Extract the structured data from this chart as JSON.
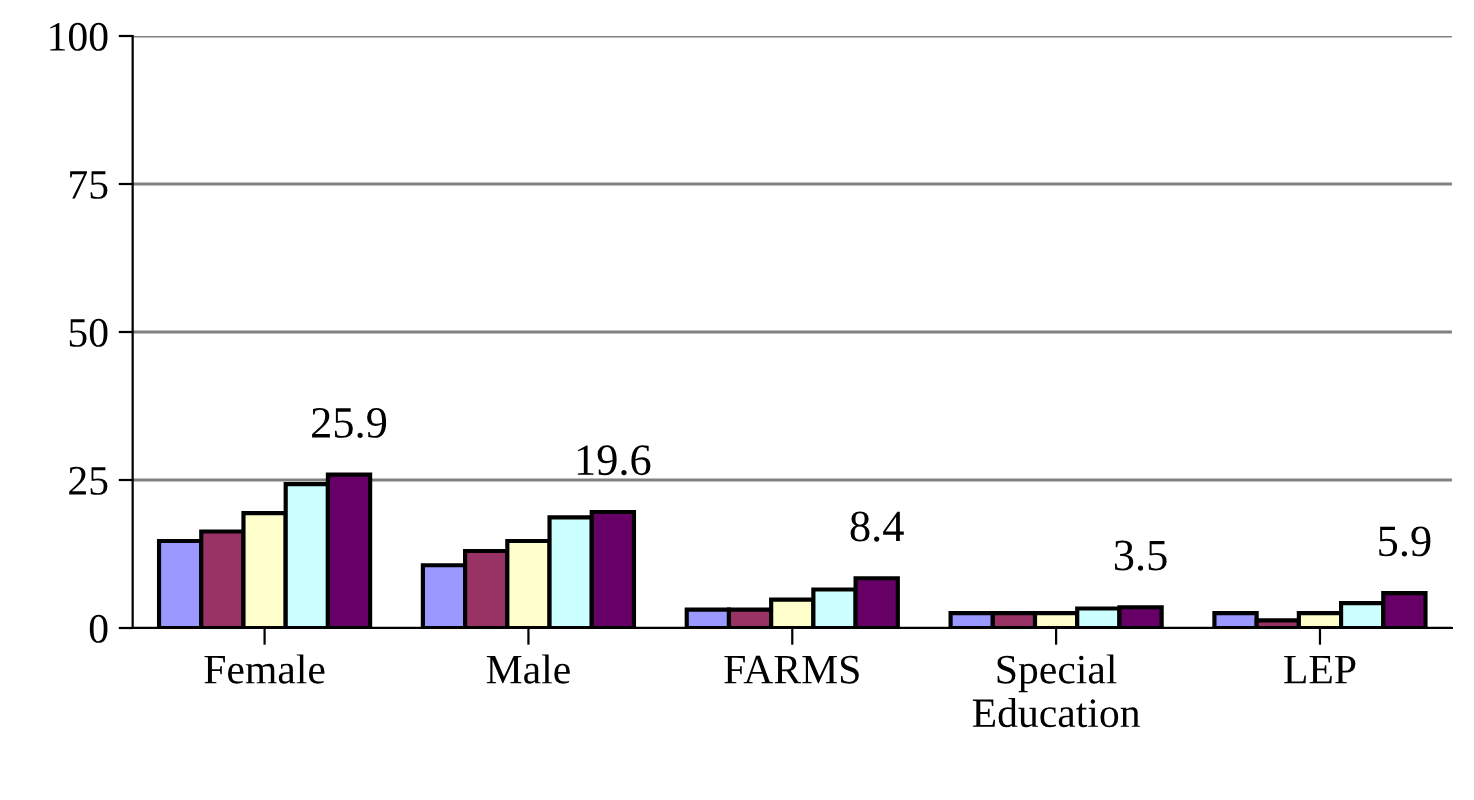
{
  "chart_data": {
    "type": "bar",
    "categories": [
      "Female",
      "Male",
      "FARMS",
      "Special\nEducation",
      "LEP"
    ],
    "series": [
      {
        "color": "#9999ff",
        "values": [
          14.7,
          10.6,
          3.1,
          2.5,
          2.5
        ]
      },
      {
        "color": "#993366",
        "values": [
          16.3,
          13.0,
          3.1,
          2.5,
          1.3
        ]
      },
      {
        "color": "#ffffcc",
        "values": [
          19.4,
          14.7,
          4.8,
          2.5,
          2.5
        ]
      },
      {
        "color": "#ccffff",
        "values": [
          24.3,
          18.7,
          6.5,
          3.3,
          4.2
        ]
      },
      {
        "color": "#660066",
        "values": [
          25.9,
          19.6,
          8.4,
          3.5,
          5.9
        ],
        "value_labels": [
          "25.9",
          "19.6",
          "8.4",
          "3.5",
          "5.9"
        ]
      }
    ],
    "ylim": [
      0,
      100
    ],
    "yticks": [
      0,
      25,
      50,
      75,
      100
    ],
    "grid": "y"
  }
}
